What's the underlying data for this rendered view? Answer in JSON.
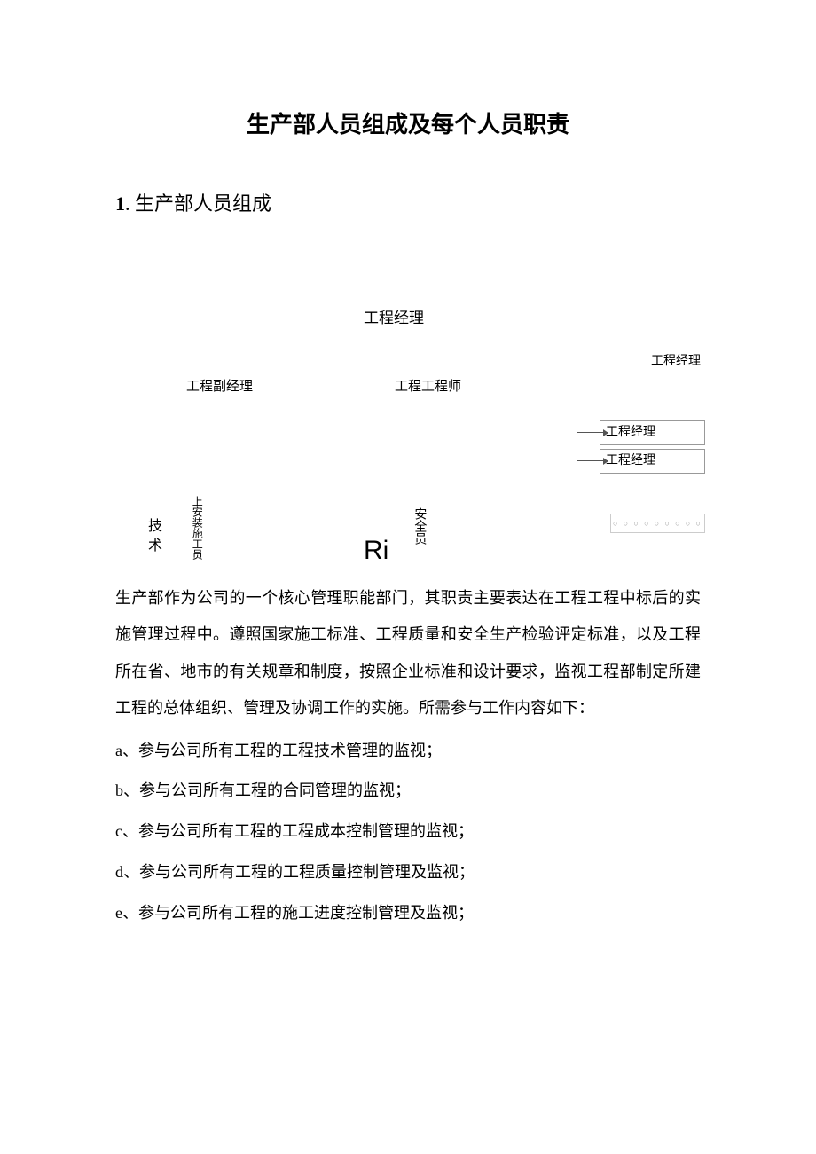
{
  "doc": {
    "title": "生产部人员组成及每个人员职责",
    "section1": {
      "num": "1",
      "label": ". 生产部人员组成"
    },
    "diagram": {
      "top": "工程经理",
      "eng_right": "工程经理",
      "vice": "工程副经理",
      "engineer": "工程工程师",
      "box1": "工程经理",
      "box2": "工程经理",
      "dotbox": "○ ○ ○ ○ ○ ○ ○ ○ ○",
      "tech": "技术",
      "install": "上安装施工员",
      "ri": "Ri",
      "safety": "安全员"
    },
    "body": "生产部作为公司的一个核心管理职能部门，其职责主要表达在工程工程中标后的实施管理过程中。遵照国家施工标准、工程质量和安全生产检验评定标准，以及工程所在省、地市的有关规章和制度，按照企业标准和设计要求，监视工程部制定所建工程的总体组织、管理及协调工作的实施。所需参与工作内容如下：",
    "items": [
      {
        "letter": "a、",
        "text": "参与公司所有工程的工程技术管理的监视；"
      },
      {
        "letter": "b、",
        "text": "参与公司所有工程的合同管理的监视；"
      },
      {
        "letter": "c、",
        "text": "参与公司所有工程的工程成本控制管理的监视；"
      },
      {
        "letter": "d、",
        "text": "参与公司所有工程的工程质量控制管理及监视；"
      },
      {
        "letter": "e、",
        "text": "参与公司所有工程的施工进度控制管理及监视；"
      }
    ]
  }
}
